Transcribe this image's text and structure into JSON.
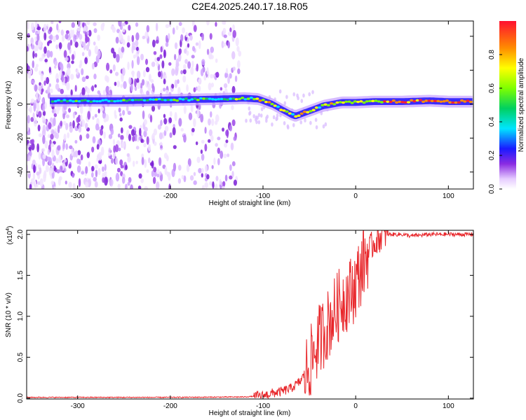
{
  "figure_title": "C2E4.2025.240.17.18.R05",
  "colors": {
    "snr_line": "#e8262a",
    "frame": "#000000",
    "noise": "#8a2be2"
  },
  "chart_data": [
    {
      "type": "heatmap",
      "title": "C2E4.2025.240.17.18.R05",
      "xlabel": "Height of straight line (km)",
      "ylabel": "Frequency (Hz)",
      "xlim": [
        -355,
        127
      ],
      "ylim": [
        -50,
        49
      ],
      "xticks": [
        -300,
        -200,
        -100,
        0,
        100
      ],
      "yticks": [
        -40,
        -20,
        0,
        20,
        40
      ],
      "colorbar": {
        "label": "Normalized spectral amplitude",
        "range": [
          0,
          1
        ],
        "ticks": [
          "0.0",
          "0.2",
          "0.4",
          "0.6",
          "0.8"
        ],
        "tick_values": [
          0,
          0.2,
          0.4,
          0.6,
          0.8
        ]
      },
      "ridge": {
        "description": "signal ridge frequency vs height",
        "x": [
          -330,
          -300,
          -250,
          -200,
          -150,
          -120,
          -105,
          -90,
          -80,
          -70,
          -65,
          -55,
          -45,
          -35,
          -25,
          -15,
          0,
          20,
          50,
          80,
          100,
          127
        ],
        "y": [
          2,
          2,
          2,
          2.5,
          3,
          3.5,
          3,
          0,
          -3,
          -6,
          -7,
          -5,
          -3,
          -1,
          0,
          1,
          1,
          1.5,
          1.5,
          2,
          1.5,
          1.5
        ]
      },
      "noise_region_x": [
        -355,
        -125
      ]
    },
    {
      "type": "line",
      "xlabel": "Height of straight line (km)",
      "ylabel": "SNR (10 * v/v)",
      "scale_label": "(x10",
      "scale_exponent": "4",
      "scale_close": ")",
      "xlim": [
        -355,
        127
      ],
      "ylim": [
        -0.01,
        2.05
      ],
      "xticks": [
        -300,
        -200,
        -100,
        0,
        100
      ],
      "yticks": [
        0,
        0.5,
        1.0,
        1.5,
        2.0
      ],
      "ytick_labels": [
        "0.0",
        "0.5",
        "1.0",
        "1.5",
        "2.0"
      ],
      "series": [
        {
          "name": "SNR",
          "x": [
            -355,
            -300,
            -200,
            -120,
            -100,
            -90,
            -80,
            -70,
            -60,
            -55,
            -50,
            -45,
            -40,
            -35,
            -30,
            -25,
            -20,
            -15,
            -10,
            -5,
            0,
            5,
            10,
            15,
            20,
            25,
            30,
            40,
            50,
            60,
            80,
            100,
            127
          ],
          "values": [
            0.01,
            0.01,
            0.01,
            0.015,
            0.03,
            0.06,
            0.08,
            0.12,
            0.2,
            0.3,
            0.4,
            0.55,
            0.7,
            0.8,
            0.9,
            1.0,
            1.1,
            1.2,
            1.25,
            1.3,
            1.4,
            1.55,
            1.7,
            1.82,
            1.9,
            1.95,
            2.0,
            2.0,
            2.0,
            1.98,
            2.0,
            2.0,
            2.0
          ]
        }
      ]
    }
  ]
}
